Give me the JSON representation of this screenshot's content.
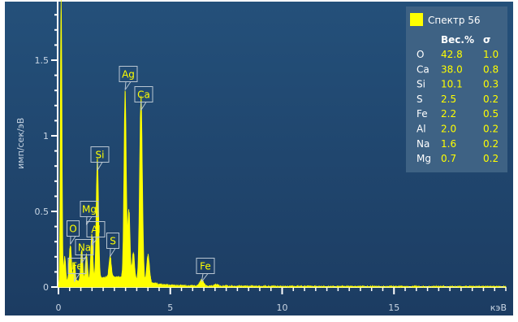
{
  "chart_data": {
    "type": "line",
    "title": "",
    "xlabel": "кэВ",
    "ylabel": "имп/сек/эВ",
    "xlim": [
      0,
      20
    ],
    "ylim": [
      0,
      1.9
    ],
    "x_ticks": [
      "0",
      "5",
      "10",
      "15"
    ],
    "y_ticks": [
      "0",
      "0.5",
      "1",
      "1.5"
    ],
    "series": [
      {
        "name": "Спектр 56",
        "color": "#ffff00",
        "peaks": [
          {
            "x": 0.12,
            "y": 1.85,
            "w": 0.035
          },
          {
            "x": 0.28,
            "y": 0.17,
            "w": 0.04
          },
          {
            "x": 0.53,
            "y": 0.24,
            "w": 0.05
          },
          {
            "x": 0.71,
            "y": 0.12,
            "w": 0.04
          },
          {
            "x": 1.04,
            "y": 0.2,
            "w": 0.045
          },
          {
            "x": 1.25,
            "y": 0.17,
            "w": 0.045
          },
          {
            "x": 1.49,
            "y": 0.3,
            "w": 0.045
          },
          {
            "x": 1.74,
            "y": 0.8,
            "w": 0.05
          },
          {
            "x": 2.31,
            "y": 0.14,
            "w": 0.05
          },
          {
            "x": 2.98,
            "y": 1.23,
            "w": 0.05
          },
          {
            "x": 3.15,
            "y": 0.45,
            "w": 0.05
          },
          {
            "x": 3.35,
            "y": 0.18,
            "w": 0.05
          },
          {
            "x": 3.69,
            "y": 1.21,
            "w": 0.06
          },
          {
            "x": 4.01,
            "y": 0.18,
            "w": 0.06
          },
          {
            "x": 6.4,
            "y": 0.045,
            "w": 0.08
          },
          {
            "x": 7.06,
            "y": 0.012,
            "w": 0.08
          }
        ]
      }
    ],
    "annotations": [
      {
        "label": "Ag",
        "x": 2.98
      },
      {
        "label": "Ca",
        "x": 3.69
      },
      {
        "label": "Si",
        "x": 1.74
      },
      {
        "label": "Mg",
        "x": 1.25
      },
      {
        "label": "O",
        "x": 0.53
      },
      {
        "label": "Al",
        "x": 1.49
      },
      {
        "label": "Na",
        "x": 1.04
      },
      {
        "label": "S",
        "x": 2.31
      },
      {
        "label": "Fe",
        "x": 0.71
      },
      {
        "label": "Fe",
        "x": 6.4
      }
    ],
    "legend": {
      "position": "top-right",
      "swatch_color": "#ffff00",
      "title": "Спектр 56",
      "columns": [
        "Вес.%",
        "σ"
      ],
      "rows": [
        {
          "el": "O",
          "wt": "42.8",
          "sigma": "1.0"
        },
        {
          "el": "Ca",
          "wt": "38.0",
          "sigma": "0.8"
        },
        {
          "el": "Si",
          "wt": "10.1",
          "sigma": "0.3"
        },
        {
          "el": "S",
          "wt": "2.5",
          "sigma": "0.2"
        },
        {
          "el": "Fe",
          "wt": "2.2",
          "sigma": "0.5"
        },
        {
          "el": "Al",
          "wt": "2.0",
          "sigma": "0.2"
        },
        {
          "el": "Na",
          "wt": "1.6",
          "sigma": "0.2"
        },
        {
          "el": "Mg",
          "wt": "0.7",
          "sigma": "0.2"
        }
      ]
    },
    "colors": {
      "background_top": "#24507a",
      "background_bottom": "#1c3c62",
      "axis": "#ffffff",
      "text": "#c9d6e4",
      "legend_bg": "#3e6284"
    }
  }
}
